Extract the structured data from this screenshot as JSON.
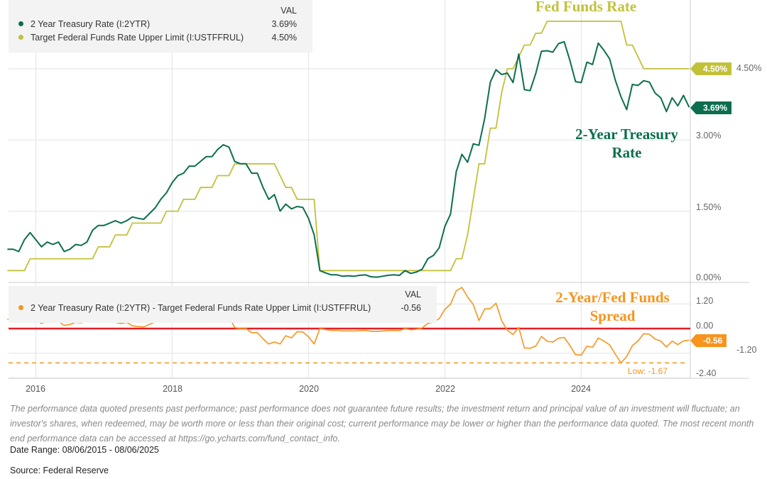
{
  "chart_data": [
    {
      "type": "line",
      "x_start": "2015-08",
      "x_frequency": "monthly",
      "x_ticks": [
        "2016",
        "2018",
        "2020",
        "2022",
        "2024"
      ],
      "y_ticks": [
        "0.00%",
        "1.50%",
        "3.00%",
        "4.50%"
      ],
      "ylim": [
        0,
        5.9
      ],
      "grid": true,
      "legend": {
        "header": "VAL",
        "placement": "top-left"
      },
      "annotations": {
        "fed_funds": "Fed Funds Rate",
        "treasury": "2-Year Treasury Rate"
      },
      "series": [
        {
          "name": "2 Year Treasury Rate (I:2YTR)",
          "last": "3.69%",
          "color": "#0b6e4f",
          "values": [
            0.7,
            0.7,
            0.65,
            0.9,
            1.05,
            0.9,
            0.75,
            0.85,
            0.8,
            0.85,
            0.65,
            0.7,
            0.8,
            0.78,
            0.85,
            1.1,
            1.2,
            1.2,
            1.25,
            1.3,
            1.25,
            1.3,
            1.38,
            1.35,
            1.33,
            1.45,
            1.57,
            1.75,
            1.89,
            2.1,
            2.25,
            2.3,
            2.45,
            2.45,
            2.55,
            2.65,
            2.65,
            2.8,
            2.9,
            2.85,
            2.55,
            2.5,
            2.5,
            2.3,
            2.3,
            2.0,
            1.75,
            1.85,
            1.5,
            1.65,
            1.55,
            1.6,
            1.58,
            1.35,
            1.0,
            0.25,
            0.2,
            0.16,
            0.16,
            0.13,
            0.14,
            0.13,
            0.15,
            0.16,
            0.12,
            0.11,
            0.13,
            0.15,
            0.16,
            0.15,
            0.25,
            0.19,
            0.22,
            0.28,
            0.5,
            0.57,
            0.73,
            1.18,
            1.44,
            2.33,
            2.7,
            2.53,
            2.92,
            2.89,
            3.45,
            4.22,
            4.48,
            4.38,
            4.41,
            4.21,
            4.81,
            4.06,
            4.04,
            4.4,
            4.87,
            4.88,
            4.85,
            5.03,
            5.07,
            4.68,
            4.23,
            4.21,
            4.64,
            4.59,
            5.04,
            4.89,
            4.71,
            4.26,
            3.91,
            3.64,
            4.17,
            4.15,
            4.25,
            4.22,
            3.99,
            3.89,
            3.6,
            3.89,
            3.72,
            3.94,
            3.69
          ]
        },
        {
          "name": "Target Federal Funds Rate Upper Limit (I:USTFFRUL)",
          "last": "4.50%",
          "color": "#c2c13b",
          "values": [
            0.25,
            0.25,
            0.25,
            0.25,
            0.5,
            0.5,
            0.5,
            0.5,
            0.5,
            0.5,
            0.5,
            0.5,
            0.5,
            0.5,
            0.5,
            0.5,
            0.75,
            0.75,
            0.75,
            1.0,
            1.0,
            1.0,
            1.25,
            1.25,
            1.25,
            1.25,
            1.25,
            1.25,
            1.5,
            1.5,
            1.5,
            1.75,
            1.75,
            1.75,
            2.0,
            2.0,
            2.0,
            2.25,
            2.25,
            2.25,
            2.5,
            2.5,
            2.5,
            2.5,
            2.5,
            2.5,
            2.5,
            2.5,
            2.25,
            2.0,
            2.0,
            1.75,
            1.75,
            1.75,
            1.75,
            0.25,
            0.25,
            0.25,
            0.25,
            0.25,
            0.25,
            0.25,
            0.25,
            0.25,
            0.25,
            0.25,
            0.25,
            0.25,
            0.25,
            0.25,
            0.25,
            0.25,
            0.25,
            0.25,
            0.25,
            0.25,
            0.25,
            0.25,
            0.25,
            0.5,
            0.5,
            1.0,
            1.75,
            2.5,
            2.5,
            3.25,
            3.25,
            4.0,
            4.5,
            4.5,
            4.75,
            5.0,
            5.0,
            5.25,
            5.25,
            5.5,
            5.5,
            5.5,
            5.5,
            5.5,
            5.5,
            5.5,
            5.5,
            5.5,
            5.5,
            5.5,
            5.5,
            5.5,
            5.5,
            5.0,
            5.0,
            4.75,
            4.5,
            4.5,
            4.5,
            4.5,
            4.5,
            4.5,
            4.5,
            4.5,
            4.5
          ]
        }
      ]
    },
    {
      "type": "line",
      "x_start": "2015-08",
      "x_frequency": "monthly",
      "y_ticks": [
        "1.20",
        "0.00",
        "-1.20",
        "-2.40"
      ],
      "ylim": [
        -2.5,
        2.1
      ],
      "reference_line": 0,
      "low_label": "Low: -1.67",
      "low_value": -1.67,
      "legend": {
        "header": "VAL",
        "placement": "top-left"
      },
      "annotation": "2-Year/Fed Funds Spread",
      "series": [
        {
          "name": "2 Year Treasury Rate (I:2YTR) - Target Federal Funds Rate Upper Limit (I:USTFFRUL)",
          "last": "-0.56",
          "color": "#f7941d",
          "values": [
            0.45,
            0.45,
            0.4,
            0.65,
            0.55,
            0.4,
            0.25,
            0.35,
            0.3,
            0.35,
            0.15,
            0.2,
            0.3,
            0.28,
            0.35,
            0.6,
            0.45,
            0.45,
            0.5,
            0.3,
            0.25,
            0.3,
            0.13,
            0.1,
            0.08,
            0.2,
            0.32,
            0.5,
            0.39,
            0.6,
            0.75,
            0.55,
            0.7,
            0.7,
            0.55,
            0.65,
            0.65,
            0.55,
            0.65,
            0.6,
            0.05,
            0.0,
            0.0,
            -0.2,
            -0.2,
            -0.5,
            -0.75,
            -0.65,
            -0.75,
            -0.35,
            -0.45,
            -0.15,
            -0.17,
            -0.4,
            -0.75,
            0.0,
            -0.05,
            -0.09,
            -0.09,
            -0.12,
            -0.11,
            -0.12,
            -0.1,
            -0.09,
            -0.13,
            -0.14,
            -0.12,
            -0.1,
            -0.09,
            -0.1,
            0.0,
            -0.06,
            -0.03,
            0.03,
            0.25,
            0.32,
            0.48,
            0.93,
            1.19,
            1.83,
            2.0,
            1.53,
            1.17,
            0.39,
            0.95,
            0.97,
            1.23,
            0.38,
            -0.09,
            -0.29,
            0.06,
            -0.94,
            -0.96,
            -0.85,
            -0.38,
            -0.62,
            -0.65,
            -0.47,
            -0.43,
            -0.82,
            -1.27,
            -1.29,
            -0.86,
            -0.91,
            -0.46,
            -0.61,
            -0.79,
            -1.24,
            -1.67,
            -1.36,
            -0.83,
            -0.6,
            -0.25,
            -0.28,
            -0.51,
            -0.61,
            -0.9,
            -0.61,
            -0.78,
            -0.6,
            -0.56
          ]
        }
      ]
    }
  ],
  "footer": {
    "disclaimer": "The performance data quoted presents past performance; past performance does not guarantee future results; the investment return and principal value of an investment will fluctuate; an investor's shares, when redeemed, may be worth more or less than their original cost; current performance may be lower or higher than the performance data quoted. The most recent month end performance data can be accessed at https://go.ycharts.com/fund_contact_info.",
    "date_range": "Date Range: 08/06/2015 - 08/06/2025",
    "source": "Source: Federal Reserve"
  }
}
